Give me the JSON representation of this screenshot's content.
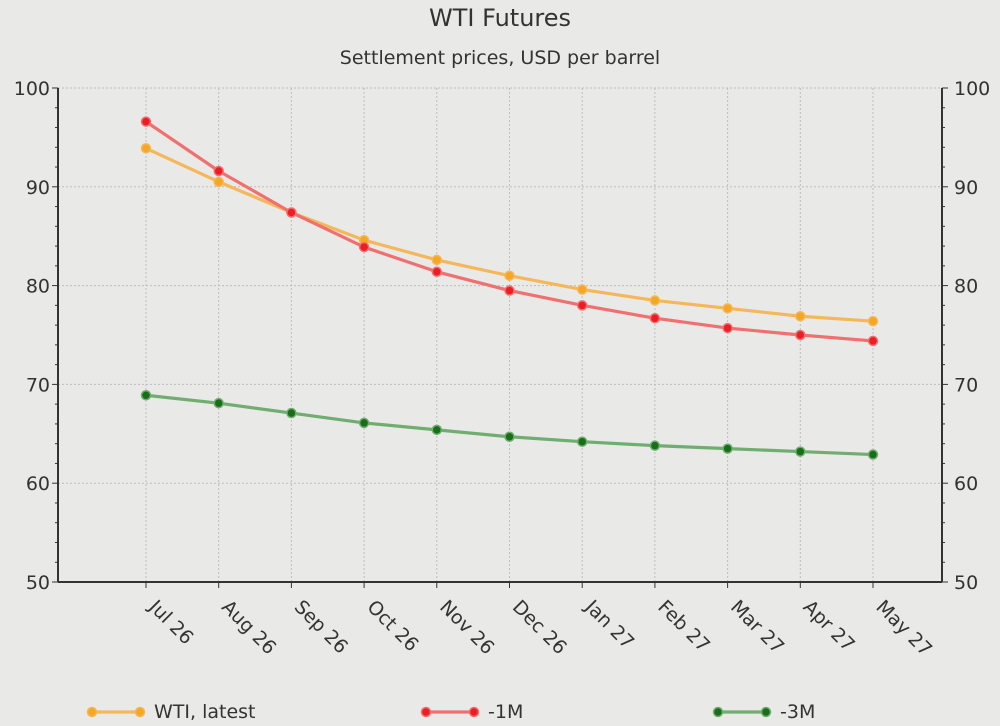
{
  "chart_data": {
    "type": "line",
    "title": "WTI Futures",
    "subtitle": "Settlement prices, USD per barrel",
    "categories": [
      "Jul 26",
      "Aug 26",
      "Sep 26",
      "Oct 26",
      "Nov 26",
      "Dec 26",
      "Jan 27",
      "Feb 27",
      "Mar 27",
      "Apr 27",
      "May 27"
    ],
    "ylim": [
      50,
      100
    ],
    "yticks": [
      50,
      60,
      70,
      80,
      90,
      100
    ],
    "y_axis_sides": "left and right",
    "grid": true,
    "legend_position": "bottom",
    "series": [
      {
        "name": "WTI, latest",
        "color": "#f5b75a",
        "marker_color": "#f5a623",
        "values": [
          93.9,
          90.5,
          87.4,
          84.6,
          82.6,
          81.0,
          79.6,
          78.5,
          77.7,
          76.9,
          76.4
        ]
      },
      {
        "name": "-1M",
        "color": "#f07070",
        "marker_color": "#ee1c25",
        "values": [
          96.6,
          91.6,
          87.4,
          83.9,
          81.4,
          79.5,
          78.0,
          76.7,
          75.7,
          75.0,
          74.4
        ]
      },
      {
        "name": "-3M",
        "color": "#70ad70",
        "marker_color": "#1a6e1a",
        "values": [
          68.9,
          68.1,
          67.1,
          66.1,
          65.4,
          64.7,
          64.2,
          63.8,
          63.5,
          63.2,
          62.9
        ]
      }
    ]
  }
}
